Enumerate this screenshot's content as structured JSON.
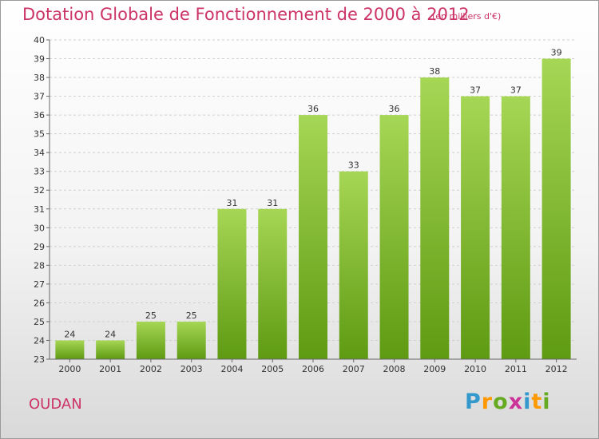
{
  "page": {
    "title": "Dotation Globale de Fonctionnement de 2000 à 2012",
    "subtitle": "(en milliers d'€)",
    "city": "OUDAN",
    "logo": {
      "letters": [
        "P",
        "r",
        "o",
        "x",
        "i",
        "t",
        "i"
      ],
      "colors": [
        "#3399cc",
        "#ff9900",
        "#66aa22",
        "#cc3399",
        "#3399cc",
        "#ff9900",
        "#66aa22"
      ]
    }
  },
  "colors": {
    "title": "#cc3366",
    "bar_light": "#a6d655",
    "bar_dark": "#5e9a12",
    "grid": "#cfcfcf"
  },
  "chart_data": {
    "type": "bar",
    "title": "Dotation Globale de Fonctionnement de 2000 à 2012",
    "subtitle": "(en milliers d'€)",
    "categories": [
      "2000",
      "2001",
      "2002",
      "2003",
      "2004",
      "2005",
      "2006",
      "2007",
      "2008",
      "2009",
      "2010",
      "2011",
      "2012"
    ],
    "values": [
      24,
      24,
      25,
      25,
      31,
      31,
      36,
      33,
      36,
      38,
      37,
      37,
      39
    ],
    "ylim": [
      23,
      40
    ],
    "yticks": [
      23,
      24,
      25,
      26,
      27,
      28,
      29,
      30,
      31,
      32,
      33,
      34,
      35,
      36,
      37,
      38,
      39,
      40
    ],
    "grid": true,
    "data_labels": true
  }
}
